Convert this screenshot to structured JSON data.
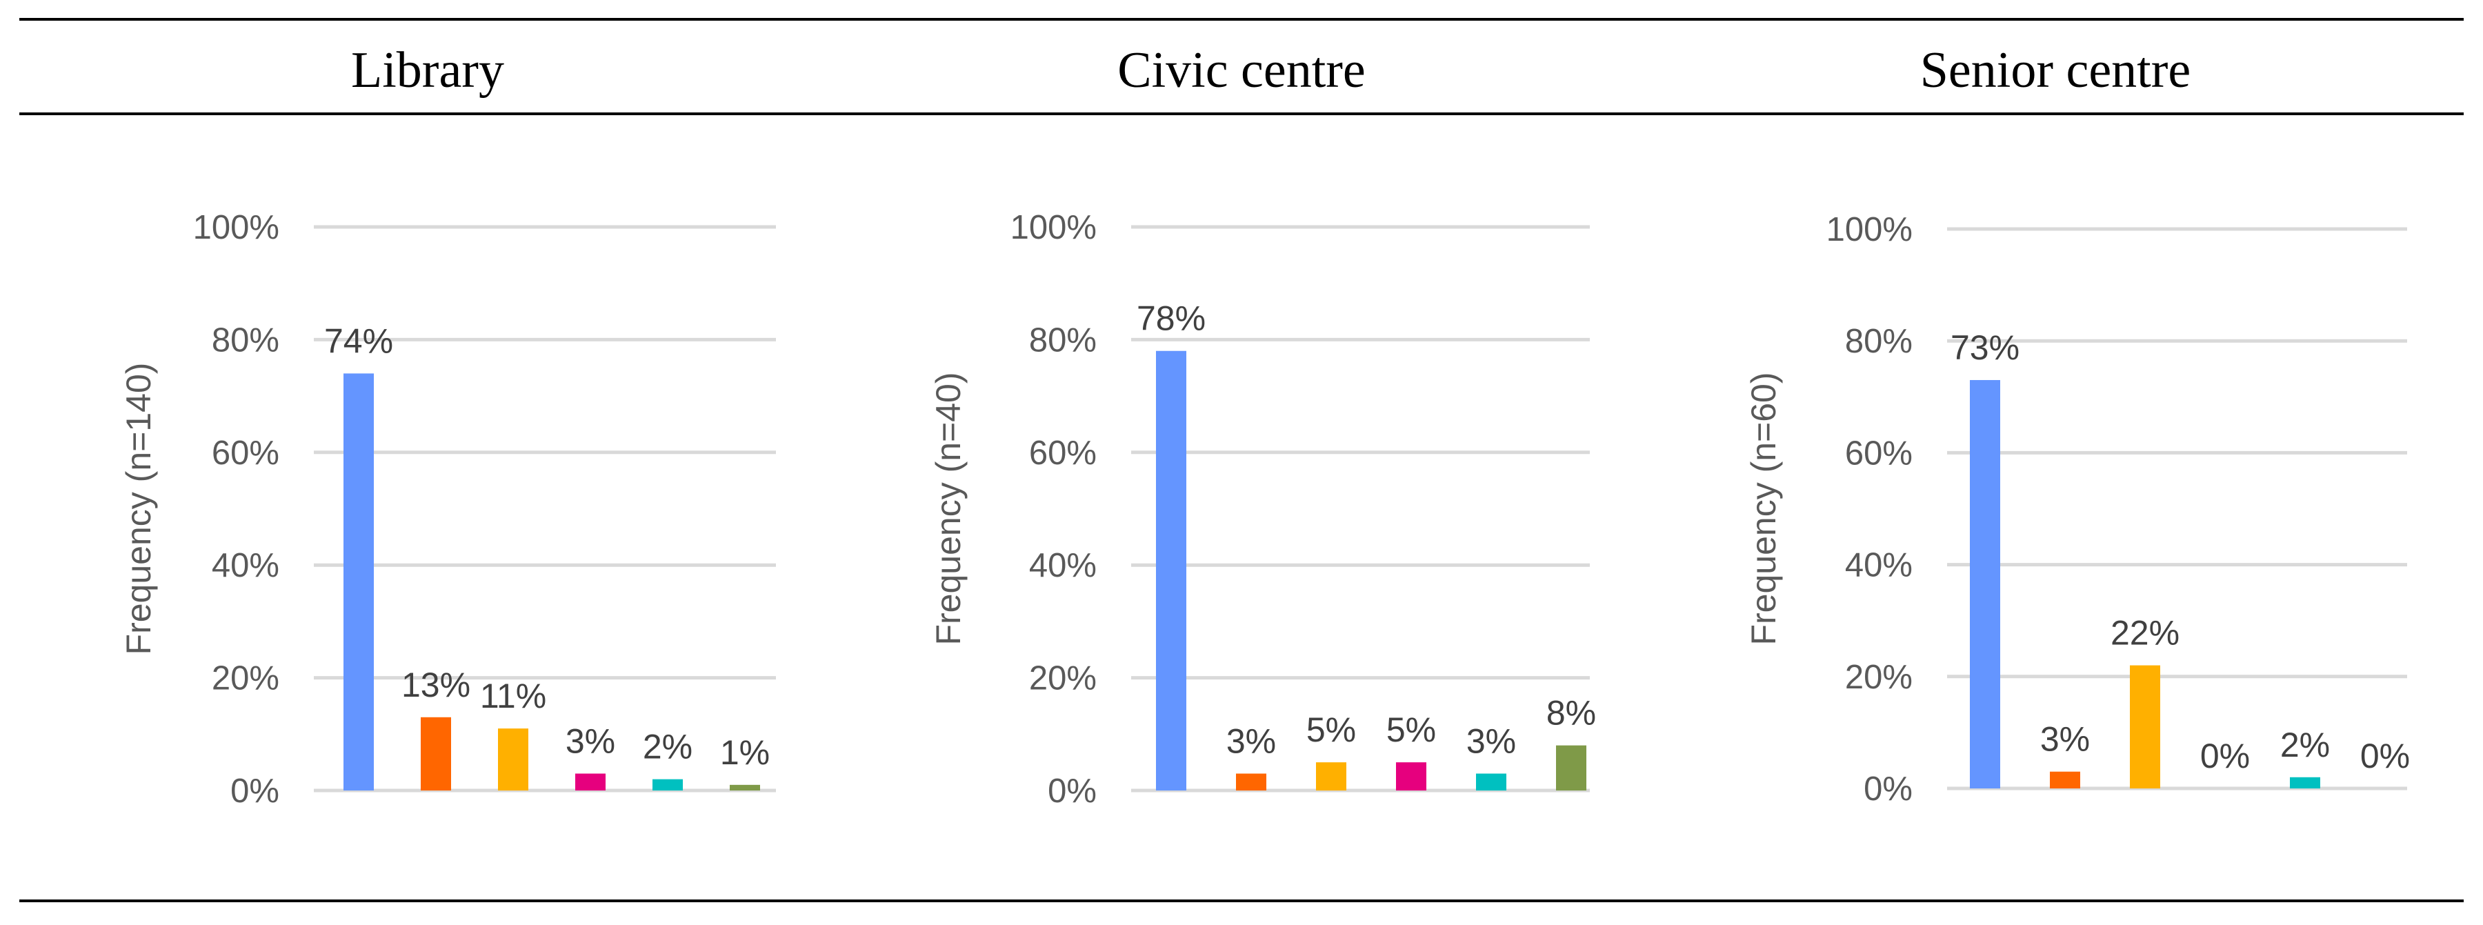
{
  "chart_data": [
    {
      "type": "bar",
      "title": "Library",
      "ylabel": "Frequency (n=140)",
      "ylim": [
        0,
        100
      ],
      "yticks": [
        "0%",
        "20%",
        "40%",
        "60%",
        "80%",
        "100%"
      ],
      "values": [
        74,
        13,
        11,
        3,
        2,
        1
      ],
      "labels": [
        "74%",
        "13%",
        "11%",
        "3%",
        "2%",
        "1%"
      ],
      "colors": [
        "#6495ff",
        "#ff6600",
        "#ffb000",
        "#e6007e",
        "#00c0c0",
        "#7f9a48"
      ],
      "grid": true
    },
    {
      "type": "bar",
      "title": "Civic centre",
      "ylabel": "Frequency (n=40)",
      "ylim": [
        0,
        100
      ],
      "yticks": [
        "0%",
        "20%",
        "40%",
        "60%",
        "80%",
        "100%"
      ],
      "values": [
        78,
        3,
        5,
        5,
        3,
        8
      ],
      "labels": [
        "78%",
        "3%",
        "5%",
        "5%",
        "3%",
        "8%"
      ],
      "colors": [
        "#6495ff",
        "#ff6600",
        "#ffb000",
        "#e6007e",
        "#00c0c0",
        "#7f9a48"
      ],
      "grid": true
    },
    {
      "type": "bar",
      "title": "Senior centre",
      "ylabel": "Frequency (n=60)",
      "ylim": [
        0,
        100
      ],
      "yticks": [
        "0%",
        "20%",
        "40%",
        "60%",
        "80%",
        "100%"
      ],
      "values": [
        73,
        3,
        22,
        0,
        2,
        0
      ],
      "labels": [
        "73%",
        "3%",
        "22%",
        "0%",
        "2%",
        "0%"
      ],
      "colors": [
        "#6495ff",
        "#ff6600",
        "#ffb000",
        "#e6007e",
        "#00c0c0",
        "#7f9a48"
      ],
      "grid": true
    }
  ]
}
